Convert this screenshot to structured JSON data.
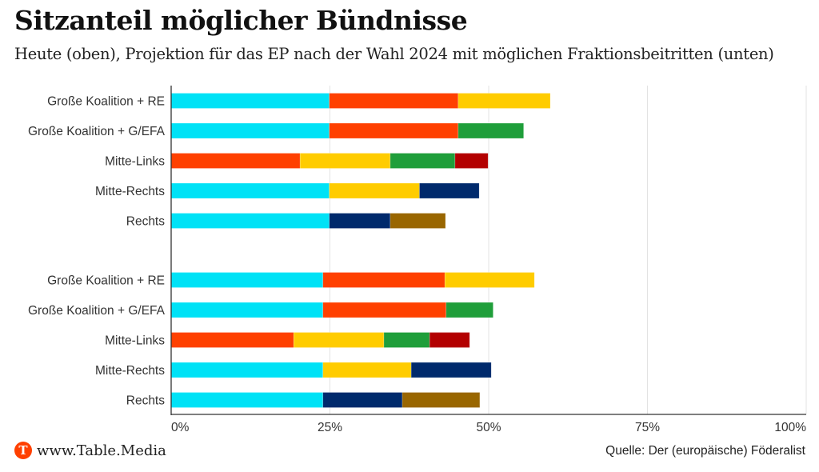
{
  "header": {
    "title": "Sitzanteil möglicher Bündnisse",
    "subtitle": "Heute (oben), Projektion für das EP nach der Wahl 2024 mit möglichen Fraktionsbeitritten (unten)"
  },
  "footer": {
    "logo_letter": "T",
    "site": "www.Table.Media",
    "source": "Quelle: Der (europäische) Föderalist"
  },
  "chart_data": {
    "type": "bar",
    "orientation": "horizontal",
    "stacked": true,
    "title": "Sitzanteil möglicher Bündnisse",
    "subtitle": "Heute (oben), Projektion für das EP nach der Wahl 2024 mit möglichen Fraktionsbeitritten (unten)",
    "xlabel": "",
    "ylabel": "",
    "xlim": [
      0,
      100
    ],
    "xticks": [
      0,
      25,
      50,
      75,
      100
    ],
    "xtick_labels": [
      "0%",
      "25%",
      "50%",
      "75%",
      "100%"
    ],
    "grid": true,
    "legend": "none",
    "colors": {
      "cyan": "#00E2F6",
      "red": "#FF4000",
      "yellow": "#FFCC00",
      "green": "#1F9E3A",
      "darkred": "#B30000",
      "navy": "#002A6C",
      "brown": "#996600"
    },
    "groups": [
      {
        "name": "Heute",
        "rows": [
          {
            "label": "Große Koalition + RE",
            "segments": [
              {
                "color": "cyan",
                "value": 24.9
              },
              {
                "color": "red",
                "value": 20.3
              },
              {
                "color": "yellow",
                "value": 14.5
              }
            ]
          },
          {
            "label": "Große Koalition + G/EFA",
            "segments": [
              {
                "color": "cyan",
                "value": 24.9
              },
              {
                "color": "red",
                "value": 20.3
              },
              {
                "color": "green",
                "value": 10.3
              }
            ]
          },
          {
            "label": "Mitte-Links",
            "segments": [
              {
                "color": "red",
                "value": 20.3
              },
              {
                "color": "yellow",
                "value": 14.2
              },
              {
                "color": "green",
                "value": 10.2
              },
              {
                "color": "darkred",
                "value": 5.2
              }
            ]
          },
          {
            "label": "Mitte-Rechts",
            "segments": [
              {
                "color": "cyan",
                "value": 24.9
              },
              {
                "color": "yellow",
                "value": 14.2
              },
              {
                "color": "navy",
                "value": 9.4
              }
            ]
          },
          {
            "label": "Rechts",
            "segments": [
              {
                "color": "cyan",
                "value": 24.9
              },
              {
                "color": "navy",
                "value": 9.6
              },
              {
                "color": "brown",
                "value": 8.7
              }
            ]
          }
        ]
      },
      {
        "name": "Projektion 2024",
        "rows": [
          {
            "label": "Große Koalition + RE",
            "segments": [
              {
                "color": "cyan",
                "value": 23.9
              },
              {
                "color": "red",
                "value": 19.2
              },
              {
                "color": "yellow",
                "value": 14.1
              }
            ]
          },
          {
            "label": "Große Koalition + G/EFA",
            "segments": [
              {
                "color": "cyan",
                "value": 23.9
              },
              {
                "color": "red",
                "value": 19.4
              },
              {
                "color": "green",
                "value": 7.4
              }
            ]
          },
          {
            "label": "Mitte-Links",
            "segments": [
              {
                "color": "red",
                "value": 19.3
              },
              {
                "color": "yellow",
                "value": 14.2
              },
              {
                "color": "green",
                "value": 7.2
              },
              {
                "color": "darkred",
                "value": 6.3
              }
            ]
          },
          {
            "label": "Mitte-Rechts",
            "segments": [
              {
                "color": "cyan",
                "value": 23.9
              },
              {
                "color": "yellow",
                "value": 13.9
              },
              {
                "color": "navy",
                "value": 12.6
              }
            ]
          },
          {
            "label": "Rechts",
            "segments": [
              {
                "color": "cyan",
                "value": 23.9
              },
              {
                "color": "navy",
                "value": 12.5
              },
              {
                "color": "brown",
                "value": 12.2
              }
            ]
          }
        ]
      }
    ]
  }
}
